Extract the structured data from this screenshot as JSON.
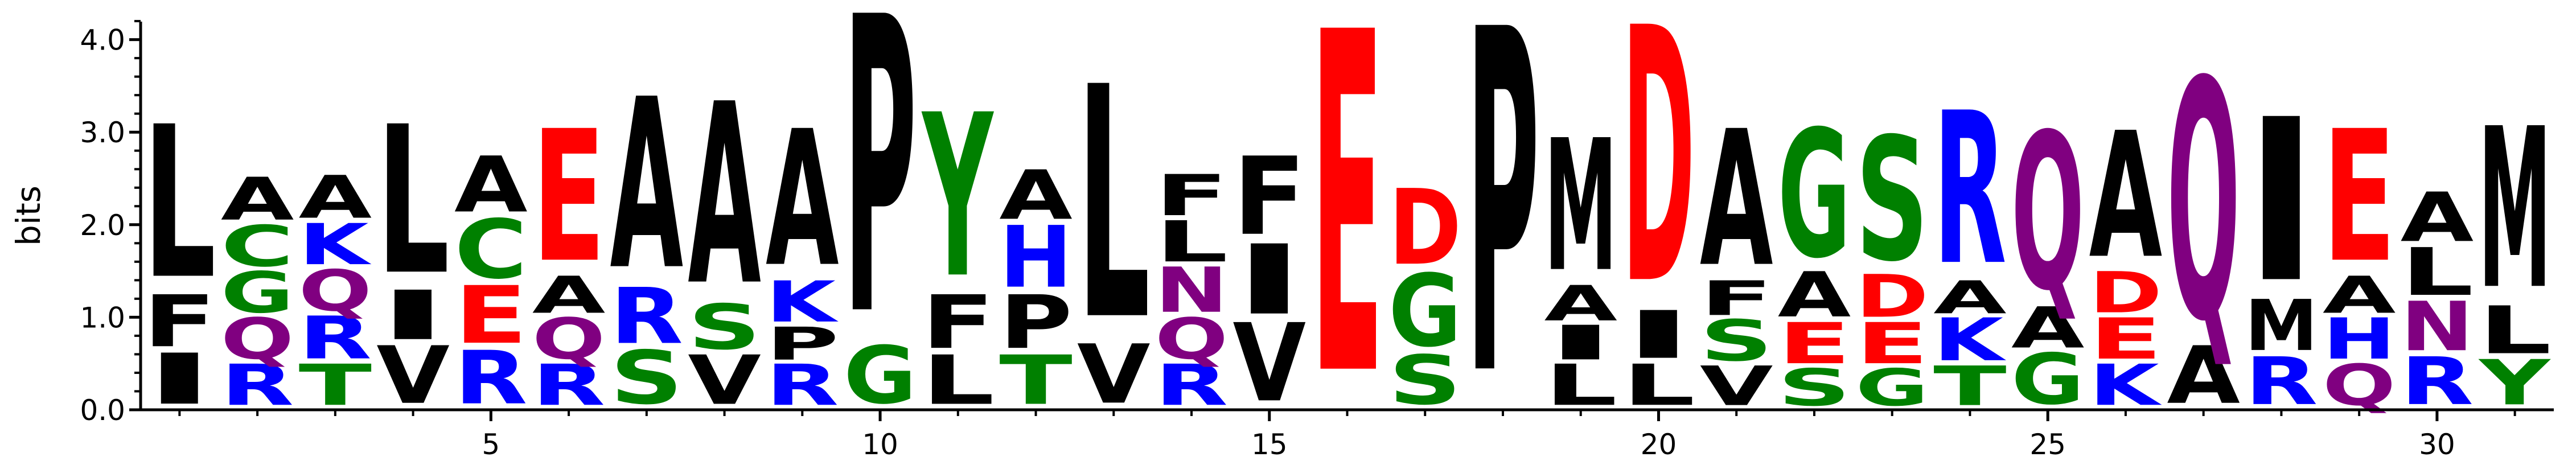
{
  "chart_data": {
    "type": "sequence-logo",
    "ylabel": "bits",
    "ylim": [
      0,
      4.3
    ],
    "yticks": [
      0.0,
      1.0,
      2.0,
      3.0,
      4.0
    ],
    "ytick_labels": [
      "0.0",
      "1.0",
      "2.0",
      "3.0",
      "4.0"
    ],
    "xlim": [
      0.5,
      31.5
    ],
    "xticks": [
      5,
      10,
      15,
      20,
      25,
      30
    ],
    "xtick_labels": [
      "5",
      "10",
      "15",
      "20",
      "25",
      "30"
    ],
    "colors": {
      "L": "#000000",
      "I": "#000000",
      "F": "#000000",
      "V": "#000000",
      "A": "#000000",
      "P": "#000000",
      "M": "#000000",
      "W": "#000000",
      "G": "#008000",
      "S": "#008000",
      "T": "#008000",
      "Y": "#008000",
      "C": "#008000",
      "Q": "#800080",
      "N": "#800080",
      "K": "#0000ff",
      "R": "#0000ff",
      "H": "#0000ff",
      "D": "#ff0000",
      "E": "#ff0000"
    },
    "positions": [
      {
        "pos": 1,
        "letters": [
          {
            "letter": "I",
            "bits": 0.62
          },
          {
            "letter": "F",
            "bits": 0.63
          },
          {
            "letter": "L",
            "bits": 1.85
          }
        ]
      },
      {
        "pos": 2,
        "letters": [
          {
            "letter": "R",
            "bits": 0.5
          },
          {
            "letter": "Q",
            "bits": 0.5
          },
          {
            "letter": "G",
            "bits": 0.5
          },
          {
            "letter": "C",
            "bits": 0.5
          },
          {
            "letter": "A",
            "bits": 0.52
          }
        ]
      },
      {
        "pos": 3,
        "letters": [
          {
            "letter": "T",
            "bits": 0.5
          },
          {
            "letter": "R",
            "bits": 0.52
          },
          {
            "letter": "Q",
            "bits": 0.5
          },
          {
            "letter": "K",
            "bits": 0.5
          },
          {
            "letter": "A",
            "bits": 0.52
          }
        ]
      },
      {
        "pos": 4,
        "letters": [
          {
            "letter": "V",
            "bits": 0.7
          },
          {
            "letter": "I",
            "bits": 0.6
          },
          {
            "letter": "L",
            "bits": 1.8
          }
        ]
      },
      {
        "pos": 5,
        "letters": [
          {
            "letter": "R",
            "bits": 0.65
          },
          {
            "letter": "E",
            "bits": 0.7
          },
          {
            "letter": "C",
            "bits": 0.72
          },
          {
            "letter": "A",
            "bits": 0.68
          }
        ]
      },
      {
        "pos": 6,
        "letters": [
          {
            "letter": "R",
            "bits": 0.5
          },
          {
            "letter": "Q",
            "bits": 0.5
          },
          {
            "letter": "A",
            "bits": 0.45
          },
          {
            "letter": "E",
            "bits": 1.6
          }
        ]
      },
      {
        "pos": 7,
        "letters": [
          {
            "letter": "S",
            "bits": 0.65
          },
          {
            "letter": "R",
            "bits": 0.68
          },
          {
            "letter": "A",
            "bits": 2.07
          }
        ]
      },
      {
        "pos": 8,
        "letters": [
          {
            "letter": "V",
            "bits": 0.6
          },
          {
            "letter": "S",
            "bits": 0.55
          },
          {
            "letter": "A",
            "bits": 2.2
          }
        ]
      },
      {
        "pos": 9,
        "letters": [
          {
            "letter": "R",
            "bits": 0.5
          },
          {
            "letter": "P",
            "bits": 0.4
          },
          {
            "letter": "K",
            "bits": 0.5
          },
          {
            "letter": "A",
            "bits": 1.65
          }
        ]
      },
      {
        "pos": 10,
        "letters": [
          {
            "letter": "G",
            "bits": 0.7
          },
          {
            "letter": "P",
            "bits": 3.6
          }
        ]
      },
      {
        "pos": 11,
        "letters": [
          {
            "letter": "L",
            "bits": 0.6
          },
          {
            "letter": "F",
            "bits": 0.65
          },
          {
            "letter": "Y",
            "bits": 1.98
          }
        ]
      },
      {
        "pos": 12,
        "letters": [
          {
            "letter": "T",
            "bits": 0.6
          },
          {
            "letter": "P",
            "bits": 0.65
          },
          {
            "letter": "H",
            "bits": 0.75
          },
          {
            "letter": "A",
            "bits": 0.6
          }
        ]
      },
      {
        "pos": 13,
        "letters": [
          {
            "letter": "V",
            "bits": 0.72
          },
          {
            "letter": "L",
            "bits": 2.82
          }
        ]
      },
      {
        "pos": 14,
        "letters": [
          {
            "letter": "R",
            "bits": 0.5
          },
          {
            "letter": "Q",
            "bits": 0.5
          },
          {
            "letter": "N",
            "bits": 0.55
          },
          {
            "letter": "L",
            "bits": 0.5
          },
          {
            "letter": "F",
            "bits": 0.5
          }
        ]
      },
      {
        "pos": 15,
        "letters": [
          {
            "letter": "V",
            "bits": 0.95
          },
          {
            "letter": "I",
            "bits": 0.85
          },
          {
            "letter": "F",
            "bits": 0.95
          }
        ]
      },
      {
        "pos": 16,
        "letters": [
          {
            "letter": "E",
            "bits": 4.14
          }
        ]
      },
      {
        "pos": 17,
        "letters": [
          {
            "letter": "S",
            "bits": 0.6
          },
          {
            "letter": "G",
            "bits": 0.88
          },
          {
            "letter": "D",
            "bits": 0.92
          }
        ]
      },
      {
        "pos": 18,
        "letters": [
          {
            "letter": "P",
            "bits": 4.17
          }
        ]
      },
      {
        "pos": 19,
        "letters": [
          {
            "letter": "L",
            "bits": 0.5
          },
          {
            "letter": "I",
            "bits": 0.42
          },
          {
            "letter": "A",
            "bits": 0.43
          },
          {
            "letter": "M",
            "bits": 1.6
          }
        ]
      },
      {
        "pos": 20,
        "letters": [
          {
            "letter": "L",
            "bits": 0.5
          },
          {
            "letter": "I",
            "bits": 0.58
          },
          {
            "letter": "D",
            "bits": 3.1
          }
        ]
      },
      {
        "pos": 21,
        "letters": [
          {
            "letter": "V",
            "bits": 0.48
          },
          {
            "letter": "S",
            "bits": 0.5
          },
          {
            "letter": "F",
            "bits": 0.42
          },
          {
            "letter": "A",
            "bits": 1.65
          }
        ]
      },
      {
        "pos": 22,
        "letters": [
          {
            "letter": "S",
            "bits": 0.45
          },
          {
            "letter": "E",
            "bits": 0.5
          },
          {
            "letter": "A",
            "bits": 0.55
          },
          {
            "letter": "G",
            "bits": 1.55
          }
        ]
      },
      {
        "pos": 23,
        "letters": [
          {
            "letter": "G",
            "bits": 0.45
          },
          {
            "letter": "E",
            "bits": 0.5
          },
          {
            "letter": "D",
            "bits": 0.52
          },
          {
            "letter": "S",
            "bits": 1.5
          }
        ]
      },
      {
        "pos": 24,
        "letters": [
          {
            "letter": "T",
            "bits": 0.48
          },
          {
            "letter": "K",
            "bits": 0.52
          },
          {
            "letter": "A",
            "bits": 0.4
          },
          {
            "letter": "R",
            "bits": 1.85
          }
        ]
      },
      {
        "pos": 25,
        "letters": [
          {
            "letter": "G",
            "bits": 0.62
          },
          {
            "letter": "A",
            "bits": 0.5
          },
          {
            "letter": "Q",
            "bits": 1.9
          }
        ]
      },
      {
        "pos": 26,
        "letters": [
          {
            "letter": "K",
            "bits": 0.5
          },
          {
            "letter": "E",
            "bits": 0.5
          },
          {
            "letter": "D",
            "bits": 0.5
          },
          {
            "letter": "A",
            "bits": 1.53
          }
        ]
      },
      {
        "pos": 27,
        "letters": [
          {
            "letter": "A",
            "bits": 0.7
          },
          {
            "letter": "Q",
            "bits": 2.9
          }
        ]
      },
      {
        "pos": 28,
        "letters": [
          {
            "letter": "R",
            "bits": 0.58
          },
          {
            "letter": "M",
            "bits": 0.62
          },
          {
            "letter": "I",
            "bits": 1.98
          }
        ]
      },
      {
        "pos": 29,
        "letters": [
          {
            "letter": "Q",
            "bits": 0.5
          },
          {
            "letter": "H",
            "bits": 0.5
          },
          {
            "letter": "A",
            "bits": 0.45
          },
          {
            "letter": "E",
            "bits": 1.6
          }
        ]
      },
      {
        "pos": 30,
        "letters": [
          {
            "letter": "R",
            "bits": 0.58
          },
          {
            "letter": "N",
            "bits": 0.6
          },
          {
            "letter": "L",
            "bits": 0.58
          },
          {
            "letter": "A",
            "bits": 0.6
          }
        ]
      },
      {
        "pos": 31,
        "letters": [
          {
            "letter": "Y",
            "bits": 0.55
          },
          {
            "letter": "L",
            "bits": 0.58
          },
          {
            "letter": "M",
            "bits": 1.95
          }
        ]
      }
    ]
  }
}
